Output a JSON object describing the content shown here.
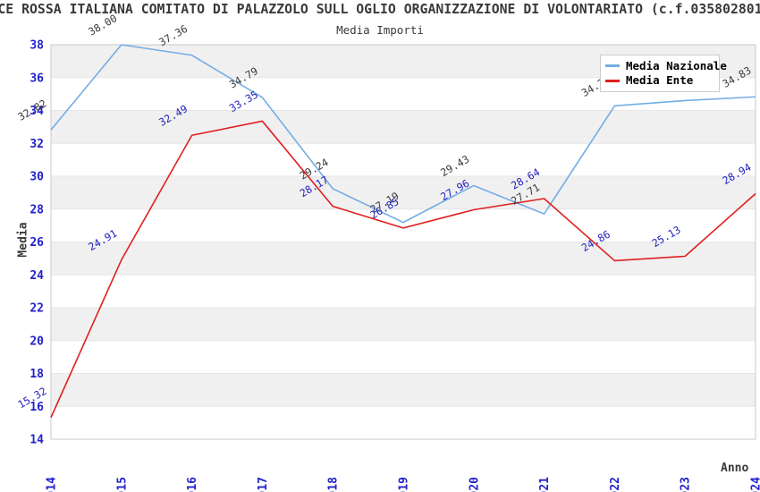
{
  "chart_data": {
    "type": "line",
    "title": "CE ROSSA ITALIANA COMITATO DI PALAZZOLO SULL OGLIO ORGANIZZAZIONE DI VOLONTARIATO (c.f.035802801",
    "subtitle": "Media Importi",
    "xlabel": "Anno",
    "ylabel": "Media",
    "x": [
      "2014",
      "2015",
      "2016",
      "2017",
      "2018",
      "2019",
      "2020",
      "2021",
      "2022",
      "2023",
      "2024"
    ],
    "ylim": [
      14,
      38
    ],
    "ytick_step": 2,
    "grid": "alternating-horizontal-bands",
    "legend_position": "top-right-inside",
    "series": [
      {
        "name": "Media Nazionale",
        "color": "#74ade4",
        "label_color": "#3a3a3a",
        "values": [
          32.82,
          38.0,
          37.36,
          34.79,
          29.24,
          27.19,
          29.43,
          27.71,
          34.28,
          34.6,
          34.83
        ],
        "point_labels": [
          "32.82",
          "38.00",
          "37.36",
          "34.79",
          "29.24",
          "27.19",
          "29.43",
          "27.71",
          "34.28",
          "34.60",
          "34.83"
        ],
        "labels_hidden_by_legend": [
          "2022",
          "2023"
        ],
        "estimated_from_gridlines": [
          "2022",
          "2023"
        ]
      },
      {
        "name": "Media Ente",
        "color": "#e01f1f",
        "label_color": "#2222bb",
        "values": [
          15.32,
          24.91,
          32.49,
          33.35,
          28.17,
          26.85,
          27.96,
          28.64,
          24.86,
          25.13,
          28.94
        ],
        "point_labels": [
          "15.32",
          "24.91",
          "32.49",
          "33.35",
          "28.17",
          "26.85",
          "27.96",
          "28.64",
          "24.86",
          "25.13",
          "28.94"
        ]
      }
    ],
    "colors": {
      "tick_label": "#2222cc",
      "axis_title": "#3a3a3a",
      "title": "#3a3a3a",
      "band_gray": "#f0f0f0",
      "band_white": "#ffffff",
      "gridline": "#e6e6e6",
      "plot_border": "#c8c8c8",
      "legend_border": "#cccccc",
      "legend_text": "#000000"
    }
  }
}
